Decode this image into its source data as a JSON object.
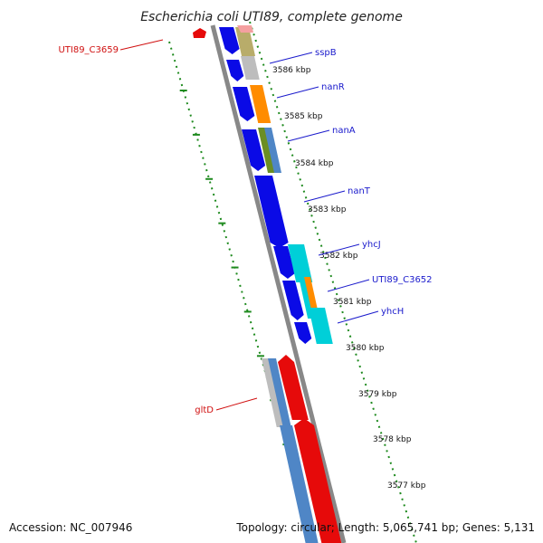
{
  "title": "Escherichia coli UTI89, complete genome",
  "footer": {
    "accession": "Accession: NC_007946",
    "summary": "Topology: circular; Length: 5,065,741 bp; Genes: 5,131"
  },
  "colors": {
    "backbone": "#888888",
    "tick_mark": "#1e8a1e",
    "forward_gene": "#0a0ae6",
    "reverse_gene": "#e60a0a",
    "label_forward": "#1a1acc",
    "label_reverse": "#d01010",
    "cog_gray": "#bdbdbd",
    "cog_olive": "#b8ac6a",
    "cog_orange": "#ff8c00",
    "cog_green": "#6b8e23",
    "cog_steelblue": "#4f86c6",
    "cog_cyan": "#00cfd8",
    "cog_pink": "#f4a0a0"
  },
  "ticks": [
    "3586 kbp",
    "3585 kbp",
    "3584 kbp",
    "3583 kbp",
    "3582 kbp",
    "3581 kbp",
    "3580 kbp",
    "3579 kbp",
    "3578 kbp",
    "3577 kbp"
  ],
  "gene_labels": [
    {
      "text": "sspB",
      "strand": "forward"
    },
    {
      "text": "nanR",
      "strand": "forward"
    },
    {
      "text": "nanA",
      "strand": "forward"
    },
    {
      "text": "nanT",
      "strand": "forward"
    },
    {
      "text": "yhcJ",
      "strand": "forward"
    },
    {
      "text": "UTI89_C3652",
      "strand": "forward"
    },
    {
      "text": "yhcH",
      "strand": "forward"
    },
    {
      "text": "UTI89_C3659",
      "strand": "reverse"
    },
    {
      "text": "gltD",
      "strand": "reverse"
    }
  ]
}
